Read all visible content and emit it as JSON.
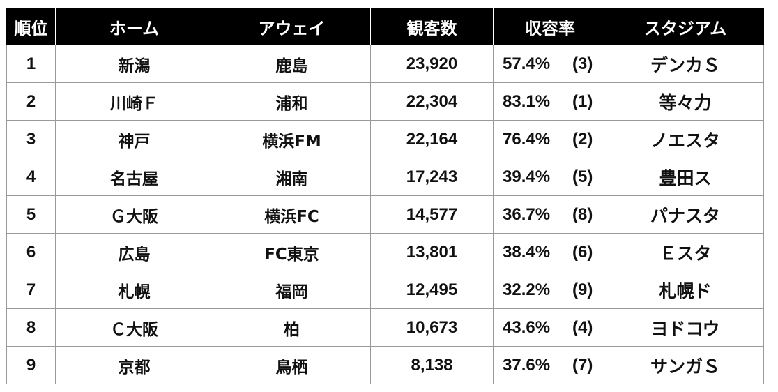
{
  "headers": {
    "rank": "順位",
    "home": "ホーム",
    "away": "アウェイ",
    "attendance": "観客数",
    "capacity_rate": "収容率",
    "stadium": "スタジアム"
  },
  "rows": [
    {
      "rank": "1",
      "home": "新潟",
      "away": "鹿島",
      "attendance": "23,920",
      "rate": "57.4%",
      "rate_rank": "(3)",
      "stadium": "デンカＳ"
    },
    {
      "rank": "2",
      "home": "川崎Ｆ",
      "away": "浦和",
      "attendance": "22,304",
      "rate": "83.1%",
      "rate_rank": "(1)",
      "stadium": "等々力"
    },
    {
      "rank": "3",
      "home": "神戸",
      "away": "横浜FM",
      "attendance": "22,164",
      "rate": "76.4%",
      "rate_rank": "(2)",
      "stadium": "ノエスタ"
    },
    {
      "rank": "4",
      "home": "名古屋",
      "away": "湘南",
      "attendance": "17,243",
      "rate": "39.4%",
      "rate_rank": "(5)",
      "stadium": "豊田ス"
    },
    {
      "rank": "5",
      "home": "Ｇ大阪",
      "away": "横浜FC",
      "attendance": "14,577",
      "rate": "36.7%",
      "rate_rank": "(8)",
      "stadium": "パナスタ"
    },
    {
      "rank": "6",
      "home": "広島",
      "away": "FC東京",
      "attendance": "13,801",
      "rate": "38.4%",
      "rate_rank": "(6)",
      "stadium": "Ｅスタ"
    },
    {
      "rank": "7",
      "home": "札幌",
      "away": "福岡",
      "attendance": "12,495",
      "rate": "32.2%",
      "rate_rank": "(9)",
      "stadium": "札幌ド"
    },
    {
      "rank": "8",
      "home": "Ｃ大阪",
      "away": "柏",
      "attendance": "10,673",
      "rate": "43.6%",
      "rate_rank": "(4)",
      "stadium": "ヨドコウ"
    },
    {
      "rank": "9",
      "home": "京都",
      "away": "鳥栖",
      "attendance": "8,138",
      "rate": "37.6%",
      "rate_rank": "(7)",
      "stadium": "サンガＳ"
    }
  ]
}
